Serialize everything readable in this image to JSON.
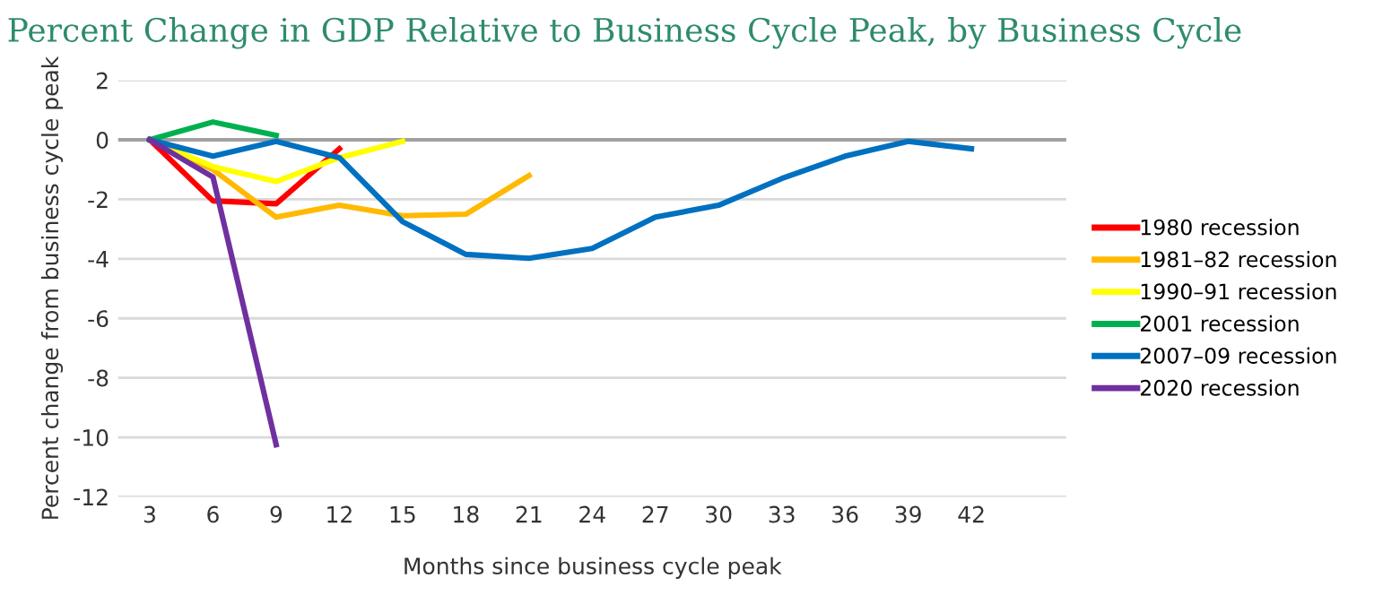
{
  "chart_data": {
    "type": "line",
    "title": "Percent Change in GDP Relative to Business Cycle Peak, by Business Cycle",
    "xlabel": "Months since business cycle peak",
    "ylabel": "Percent change from business cycle peak",
    "categories": [
      "3",
      "6",
      "9",
      "12",
      "15",
      "18",
      "21",
      "24",
      "27",
      "30",
      "33",
      "36",
      "39",
      "42",
      null
    ],
    "series": [
      {
        "name": "1980 recession",
        "color": "#ff0000",
        "values": [
          0,
          -2.05,
          -2.15,
          -0.3,
          null,
          null,
          null,
          null,
          null,
          null,
          null,
          null,
          null,
          null,
          null
        ]
      },
      {
        "name": "1981–82 recession",
        "color": "#ffb900",
        "values": [
          0,
          -1.0,
          -2.6,
          -2.2,
          -2.55,
          -2.5,
          -1.2,
          null,
          null,
          null,
          null,
          null,
          null,
          null,
          null
        ]
      },
      {
        "name": "1990–91 recession",
        "color": "#ffff00",
        "values": [
          0,
          -0.9,
          -1.4,
          -0.6,
          -0.05,
          null,
          null,
          null,
          null,
          null,
          null,
          null,
          null,
          null,
          null
        ]
      },
      {
        "name": "2001 recession",
        "color": "#00b050",
        "values": [
          0,
          0.6,
          0.15,
          null,
          null,
          null,
          null,
          null,
          null,
          null,
          null,
          null,
          null,
          null,
          null
        ]
      },
      {
        "name": "2007–09 recession",
        "color": "#0070c0",
        "values": [
          0,
          -0.55,
          -0.05,
          -0.6,
          -2.75,
          -3.85,
          -3.98,
          -3.65,
          -2.6,
          -2.2,
          -1.3,
          -0.55,
          -0.05,
          -0.3,
          null
        ]
      },
      {
        "name": "2020 recession",
        "color": "#7030a0",
        "values": [
          0,
          -1.25,
          -10.25,
          null,
          null,
          null,
          null,
          null,
          null,
          null,
          null,
          null,
          null,
          null,
          null
        ]
      }
    ],
    "ylim": [
      -12,
      2
    ],
    "yticks": [
      -12,
      -10,
      -8,
      -6,
      -4,
      -2,
      0,
      2
    ],
    "grid": "y",
    "legend": "right",
    "marker": "none",
    "line_style": "solid",
    "ref_lines": [
      {
        "axis": "y",
        "value": 0,
        "color": "#a0a0a0"
      }
    ]
  }
}
